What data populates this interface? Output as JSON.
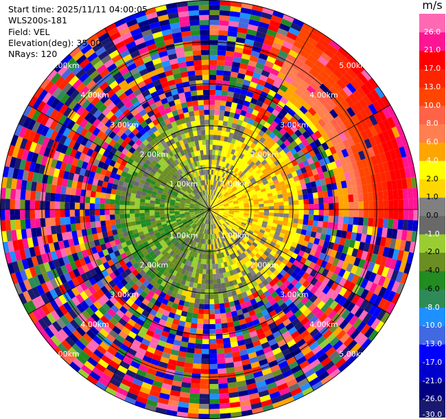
{
  "info": {
    "start_time": "Start time: 2025/11/11 04:00:05",
    "instrument": "WLS200s-181",
    "field": "Field: VEL",
    "elevation": "Elevation(deg): 35.00",
    "nrays": "NRays: 120"
  },
  "chart_data": {
    "type": "heatmap",
    "subtype": "polar-ppi",
    "n_rays": 120,
    "range_rings_km": [
      1.0,
      2.0,
      3.0,
      4.0,
      5.0
    ],
    "ring_label_text": [
      "1.00km",
      "2.00km",
      "3.00km",
      "4.00km",
      "5.00km"
    ],
    "spoke_angles_deg": [
      0,
      30,
      60,
      90,
      120,
      150,
      180,
      210,
      240,
      270,
      300,
      330
    ],
    "field": "VEL",
    "colorbar": {
      "unit": "m/s",
      "levels": [
        -30.0,
        -26.0,
        -21.0,
        -17.0,
        -13.0,
        -10.0,
        -8.0,
        -6.0,
        -4.0,
        -2.0,
        -1.0,
        0.0,
        1.0,
        2.0,
        4.0,
        6.0,
        8.0,
        10.0,
        13.0,
        17.0,
        21.0,
        26.0,
        30.0
      ],
      "tick_labels": [
        "-30.0",
        "-26.0",
        "-21.0",
        "-17.0",
        "-13.0",
        "-10.0",
        "-8.0",
        "-6.0",
        "-4.0",
        "-2.0",
        "-1.0",
        "0.0",
        "1.0",
        "2.0",
        "4.0",
        "6.0",
        "8.0",
        "10.0",
        "13.0",
        "17.0",
        "21.0",
        "26.0"
      ],
      "colors": [
        "#191970",
        "#000080",
        "#0000cd",
        "#0000ff",
        "#4169e1",
        "#1e90ff",
        "#2e8b57",
        "#228b22",
        "#6b8e23",
        "#9acd32",
        "#696969",
        "#808080",
        "#ffd700",
        "#ffff00",
        "#ffa500",
        "#ff7f50",
        "#ff6347",
        "#ff4500",
        "#ff2400",
        "#ff0000",
        "#ff1493",
        "#ff69b4"
      ]
    }
  }
}
